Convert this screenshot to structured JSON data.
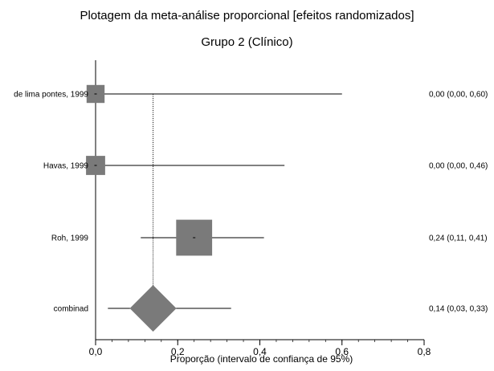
{
  "chart_data": {
    "type": "forest",
    "title": "Plotagem da meta-análise proporcional [efeitos randomizados]",
    "subtitle": "Grupo 2 (Clínico)",
    "xlabel": "Proporção (intervalo de confiança de 95%)",
    "xlim": [
      0,
      0.8
    ],
    "xticks": [
      0,
      0.2,
      0.4,
      0.6,
      0.8
    ],
    "xtick_labels": [
      "0,0",
      "0,2",
      "0,4",
      "0,6",
      "0,8"
    ],
    "studies": [
      {
        "label": "de lima pontes, 1999",
        "estimate": 0.0,
        "ci_low": 0.0,
        "ci_high": 0.6,
        "ci_text": "0,00 (0,00, 0,60)",
        "weight": 0.8
      },
      {
        "label": "Havas, 1999",
        "estimate": 0.0,
        "ci_low": 0.0,
        "ci_high": 0.46,
        "ci_text": "0,00 (0,00, 0,46)",
        "weight": 0.85
      },
      {
        "label": "Roh, 1999",
        "estimate": 0.24,
        "ci_low": 0.11,
        "ci_high": 0.41,
        "ci_text": "0,24 (0,11, 0,41)",
        "weight": 1.6
      }
    ],
    "combined": {
      "label": "combinad",
      "estimate": 0.14,
      "ci_low": 0.03,
      "ci_high": 0.33,
      "ci_text": "0,14 (0,03, 0,33)"
    },
    "marker_color": "#7a7a7a",
    "line_color": "#000000"
  }
}
